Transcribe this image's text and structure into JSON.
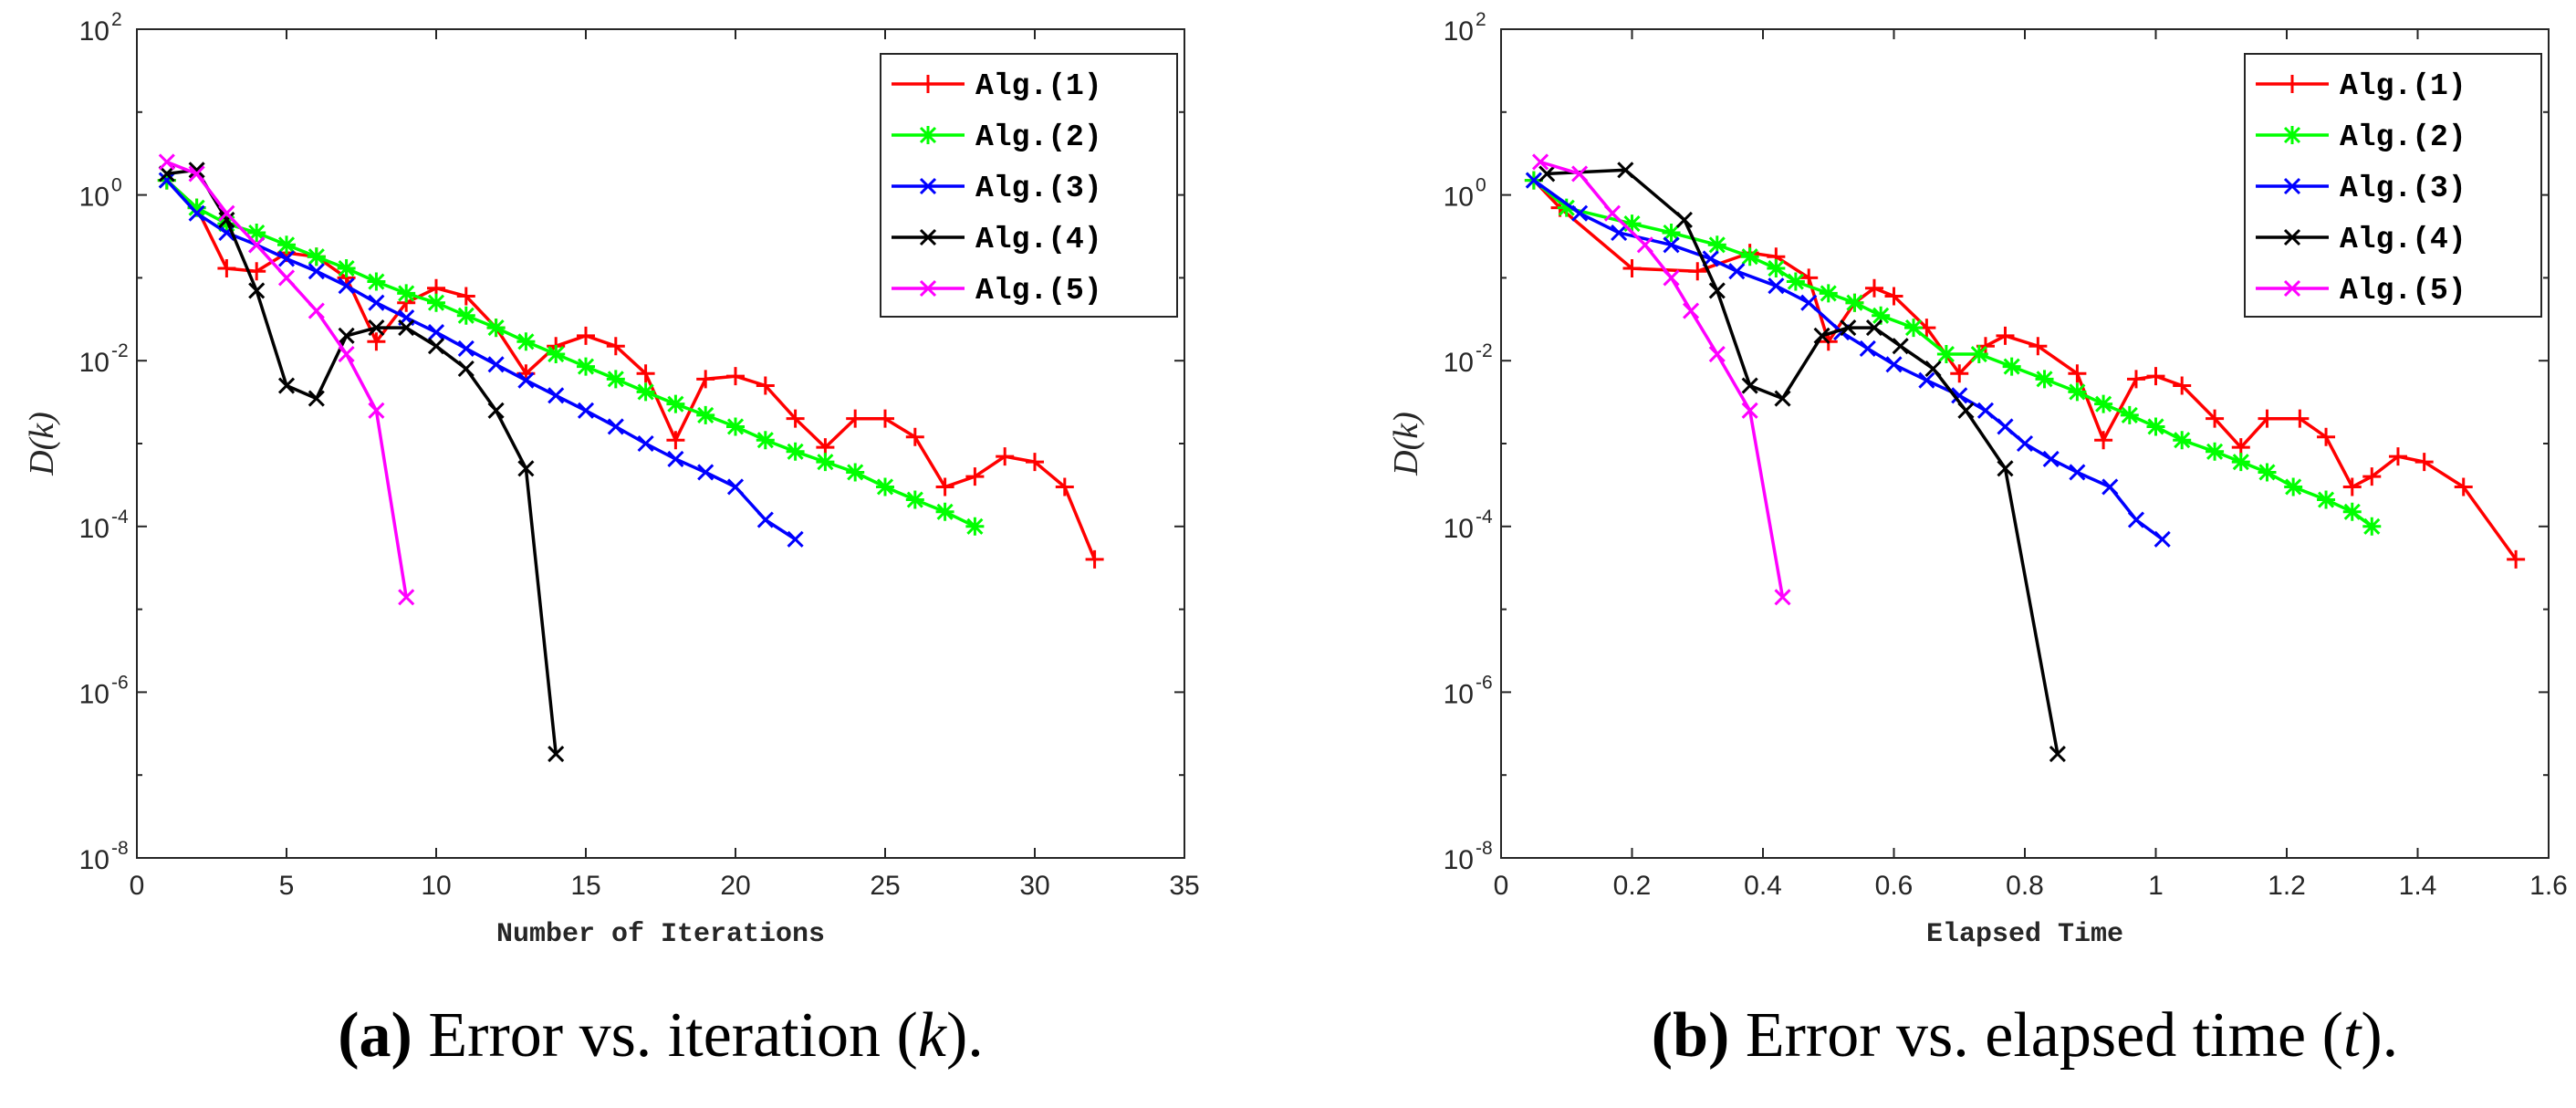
{
  "chart_data": [
    {
      "type": "line",
      "title": "",
      "xlabel": "Number of Iterations",
      "ylabel": "D(k)",
      "xlim": [
        0,
        35
      ],
      "xticks": [
        0,
        5,
        10,
        15,
        20,
        25,
        30,
        35
      ],
      "ylim_log10": [
        -8,
        2
      ],
      "yscale": "log",
      "ytick_exponents": [
        -8,
        -6,
        -4,
        -2,
        0,
        2
      ],
      "legend_position": "top-right",
      "caption": {
        "letter": "(a)",
        "text": " Error vs. iteration (",
        "var": "k",
        "end": ")."
      },
      "series": [
        {
          "name": "Alg.(1)",
          "color": "#ff0000",
          "marker": "plus",
          "x": [
            1,
            2,
            3,
            4,
            5,
            6,
            7,
            8,
            9,
            10,
            11,
            12,
            13,
            14,
            15,
            16,
            17,
            18,
            19,
            20,
            21,
            22,
            23,
            24,
            25,
            26,
            27,
            28,
            29,
            30,
            31,
            32
          ],
          "y": [
            1.5,
            0.7,
            0.13,
            0.12,
            0.2,
            0.18,
            0.1,
            0.017,
            0.05,
            0.075,
            0.06,
            0.025,
            0.007,
            0.015,
            0.02,
            0.015,
            0.007,
            0.0011,
            0.006,
            0.0065,
            0.005,
            0.002,
            0.0009,
            0.002,
            0.002,
            0.0012,
            0.0003,
            0.0004,
            0.0007,
            0.0006,
            0.0003,
            4e-05
          ]
        },
        {
          "name": "Alg.(2)",
          "color": "#00ff00",
          "marker": "star",
          "x": [
            1,
            2,
            3,
            4,
            5,
            6,
            7,
            8,
            9,
            10,
            11,
            12,
            13,
            14,
            15,
            16,
            17,
            18,
            19,
            20,
            21,
            22,
            23,
            24,
            25,
            26,
            27,
            28
          ],
          "y": [
            1.5,
            0.7,
            0.45,
            0.35,
            0.25,
            0.18,
            0.13,
            0.09,
            0.065,
            0.05,
            0.035,
            0.025,
            0.017,
            0.012,
            0.0085,
            0.006,
            0.0042,
            0.003,
            0.0022,
            0.0016,
            0.0011,
            0.0008,
            0.0006,
            0.00045,
            0.0003,
            0.00021,
            0.00015,
            0.0001
          ]
        },
        {
          "name": "Alg.(3)",
          "color": "#0000ff",
          "marker": "x",
          "x": [
            1,
            2,
            3,
            4,
            5,
            6,
            7,
            8,
            9,
            10,
            11,
            12,
            13,
            14,
            15,
            16,
            17,
            18,
            19,
            20,
            21,
            22
          ],
          "y": [
            1.5,
            0.6,
            0.35,
            0.25,
            0.17,
            0.12,
            0.08,
            0.05,
            0.033,
            0.022,
            0.014,
            0.009,
            0.0058,
            0.0038,
            0.0025,
            0.0016,
            0.001,
            0.00065,
            0.00045,
            0.0003,
            0.00012,
            7e-05
          ]
        },
        {
          "name": "Alg.(4)",
          "color": "#000000",
          "marker": "x",
          "x": [
            1,
            2,
            3,
            4,
            5,
            6,
            7,
            8,
            9,
            10,
            11,
            12,
            13,
            14
          ],
          "y": [
            1.8,
            2.0,
            0.5,
            0.07,
            0.005,
            0.0035,
            0.02,
            0.025,
            0.025,
            0.015,
            0.008,
            0.0025,
            0.0005,
            1.8e-07
          ]
        },
        {
          "name": "Alg.(5)",
          "color": "#ff00ff",
          "marker": "x",
          "x": [
            1,
            2,
            3,
            4,
            5,
            6,
            7,
            8,
            9
          ],
          "y": [
            2.5,
            1.8,
            0.6,
            0.25,
            0.1,
            0.04,
            0.012,
            0.0025,
            1.4e-05
          ]
        }
      ]
    },
    {
      "type": "line",
      "title": "",
      "xlabel": "Elapsed Time",
      "ylabel": "D(k)",
      "xlim": [
        0,
        1.6
      ],
      "xticks": [
        0,
        0.2,
        0.4,
        0.6,
        0.8,
        1,
        1.2,
        1.4,
        1.6
      ],
      "ylim_log10": [
        -8,
        2
      ],
      "yscale": "log",
      "ytick_exponents": [
        -8,
        -6,
        -4,
        -2,
        0,
        2
      ],
      "legend_position": "top-right",
      "caption": {
        "letter": "(b)",
        "text": " Error vs. elapsed time (",
        "var": "t",
        "end": ")."
      },
      "series": [
        {
          "name": "Alg.(1)",
          "color": "#ff0000",
          "marker": "plus",
          "x": [
            0.05,
            0.09,
            0.2,
            0.3,
            0.38,
            0.42,
            0.47,
            0.5,
            0.54,
            0.57,
            0.6,
            0.65,
            0.7,
            0.74,
            0.77,
            0.82,
            0.88,
            0.92,
            0.97,
            1.0,
            1.04,
            1.09,
            1.13,
            1.17,
            1.22,
            1.26,
            1.3,
            1.33,
            1.37,
            1.41,
            1.47,
            1.55
          ],
          "y": [
            1.5,
            0.7,
            0.13,
            0.12,
            0.2,
            0.18,
            0.1,
            0.017,
            0.05,
            0.075,
            0.06,
            0.025,
            0.007,
            0.015,
            0.02,
            0.015,
            0.007,
            0.0011,
            0.006,
            0.0065,
            0.005,
            0.002,
            0.0009,
            0.002,
            0.002,
            0.0012,
            0.0003,
            0.0004,
            0.0007,
            0.0006,
            0.0003,
            4e-05
          ]
        },
        {
          "name": "Alg.(2)",
          "color": "#00ff00",
          "marker": "star",
          "x": [
            0.05,
            0.1,
            0.2,
            0.26,
            0.33,
            0.38,
            0.42,
            0.45,
            0.5,
            0.54,
            0.58,
            0.63,
            0.68,
            0.73,
            0.78,
            0.83,
            0.88,
            0.92,
            0.96,
            1.0,
            1.04,
            1.09,
            1.13,
            1.17,
            1.21,
            1.26,
            1.3,
            1.33
          ],
          "y": [
            1.5,
            0.7,
            0.45,
            0.35,
            0.25,
            0.18,
            0.13,
            0.09,
            0.065,
            0.05,
            0.035,
            0.025,
            0.012,
            0.012,
            0.0085,
            0.006,
            0.0042,
            0.003,
            0.0022,
            0.0016,
            0.0011,
            0.0008,
            0.0006,
            0.00045,
            0.0003,
            0.00021,
            0.00015,
            0.0001
          ]
        },
        {
          "name": "Alg.(3)",
          "color": "#0000ff",
          "marker": "x",
          "x": [
            0.05,
            0.12,
            0.18,
            0.26,
            0.32,
            0.36,
            0.42,
            0.47,
            0.52,
            0.56,
            0.6,
            0.65,
            0.7,
            0.74,
            0.77,
            0.8,
            0.84,
            0.88,
            0.93,
            0.97,
            1.01
          ],
          "y": [
            1.5,
            0.6,
            0.35,
            0.25,
            0.17,
            0.12,
            0.08,
            0.05,
            0.022,
            0.014,
            0.009,
            0.0058,
            0.0038,
            0.0025,
            0.0016,
            0.001,
            0.00065,
            0.00045,
            0.0003,
            0.00012,
            7e-05
          ]
        },
        {
          "name": "Alg.(4)",
          "color": "#000000",
          "marker": "x",
          "x": [
            0.07,
            0.19,
            0.28,
            0.33,
            0.38,
            0.43,
            0.49,
            0.53,
            0.57,
            0.61,
            0.66,
            0.71,
            0.77,
            0.85
          ],
          "y": [
            1.8,
            2.0,
            0.5,
            0.07,
            0.005,
            0.0035,
            0.02,
            0.025,
            0.025,
            0.015,
            0.008,
            0.0025,
            0.0005,
            1.8e-07
          ]
        },
        {
          "name": "Alg.(5)",
          "color": "#ff00ff",
          "marker": "x",
          "x": [
            0.06,
            0.12,
            0.17,
            0.22,
            0.26,
            0.29,
            0.33,
            0.38,
            0.43
          ],
          "y": [
            2.5,
            1.8,
            0.6,
            0.25,
            0.1,
            0.04,
            0.012,
            0.0025,
            1.4e-05
          ]
        }
      ]
    }
  ]
}
